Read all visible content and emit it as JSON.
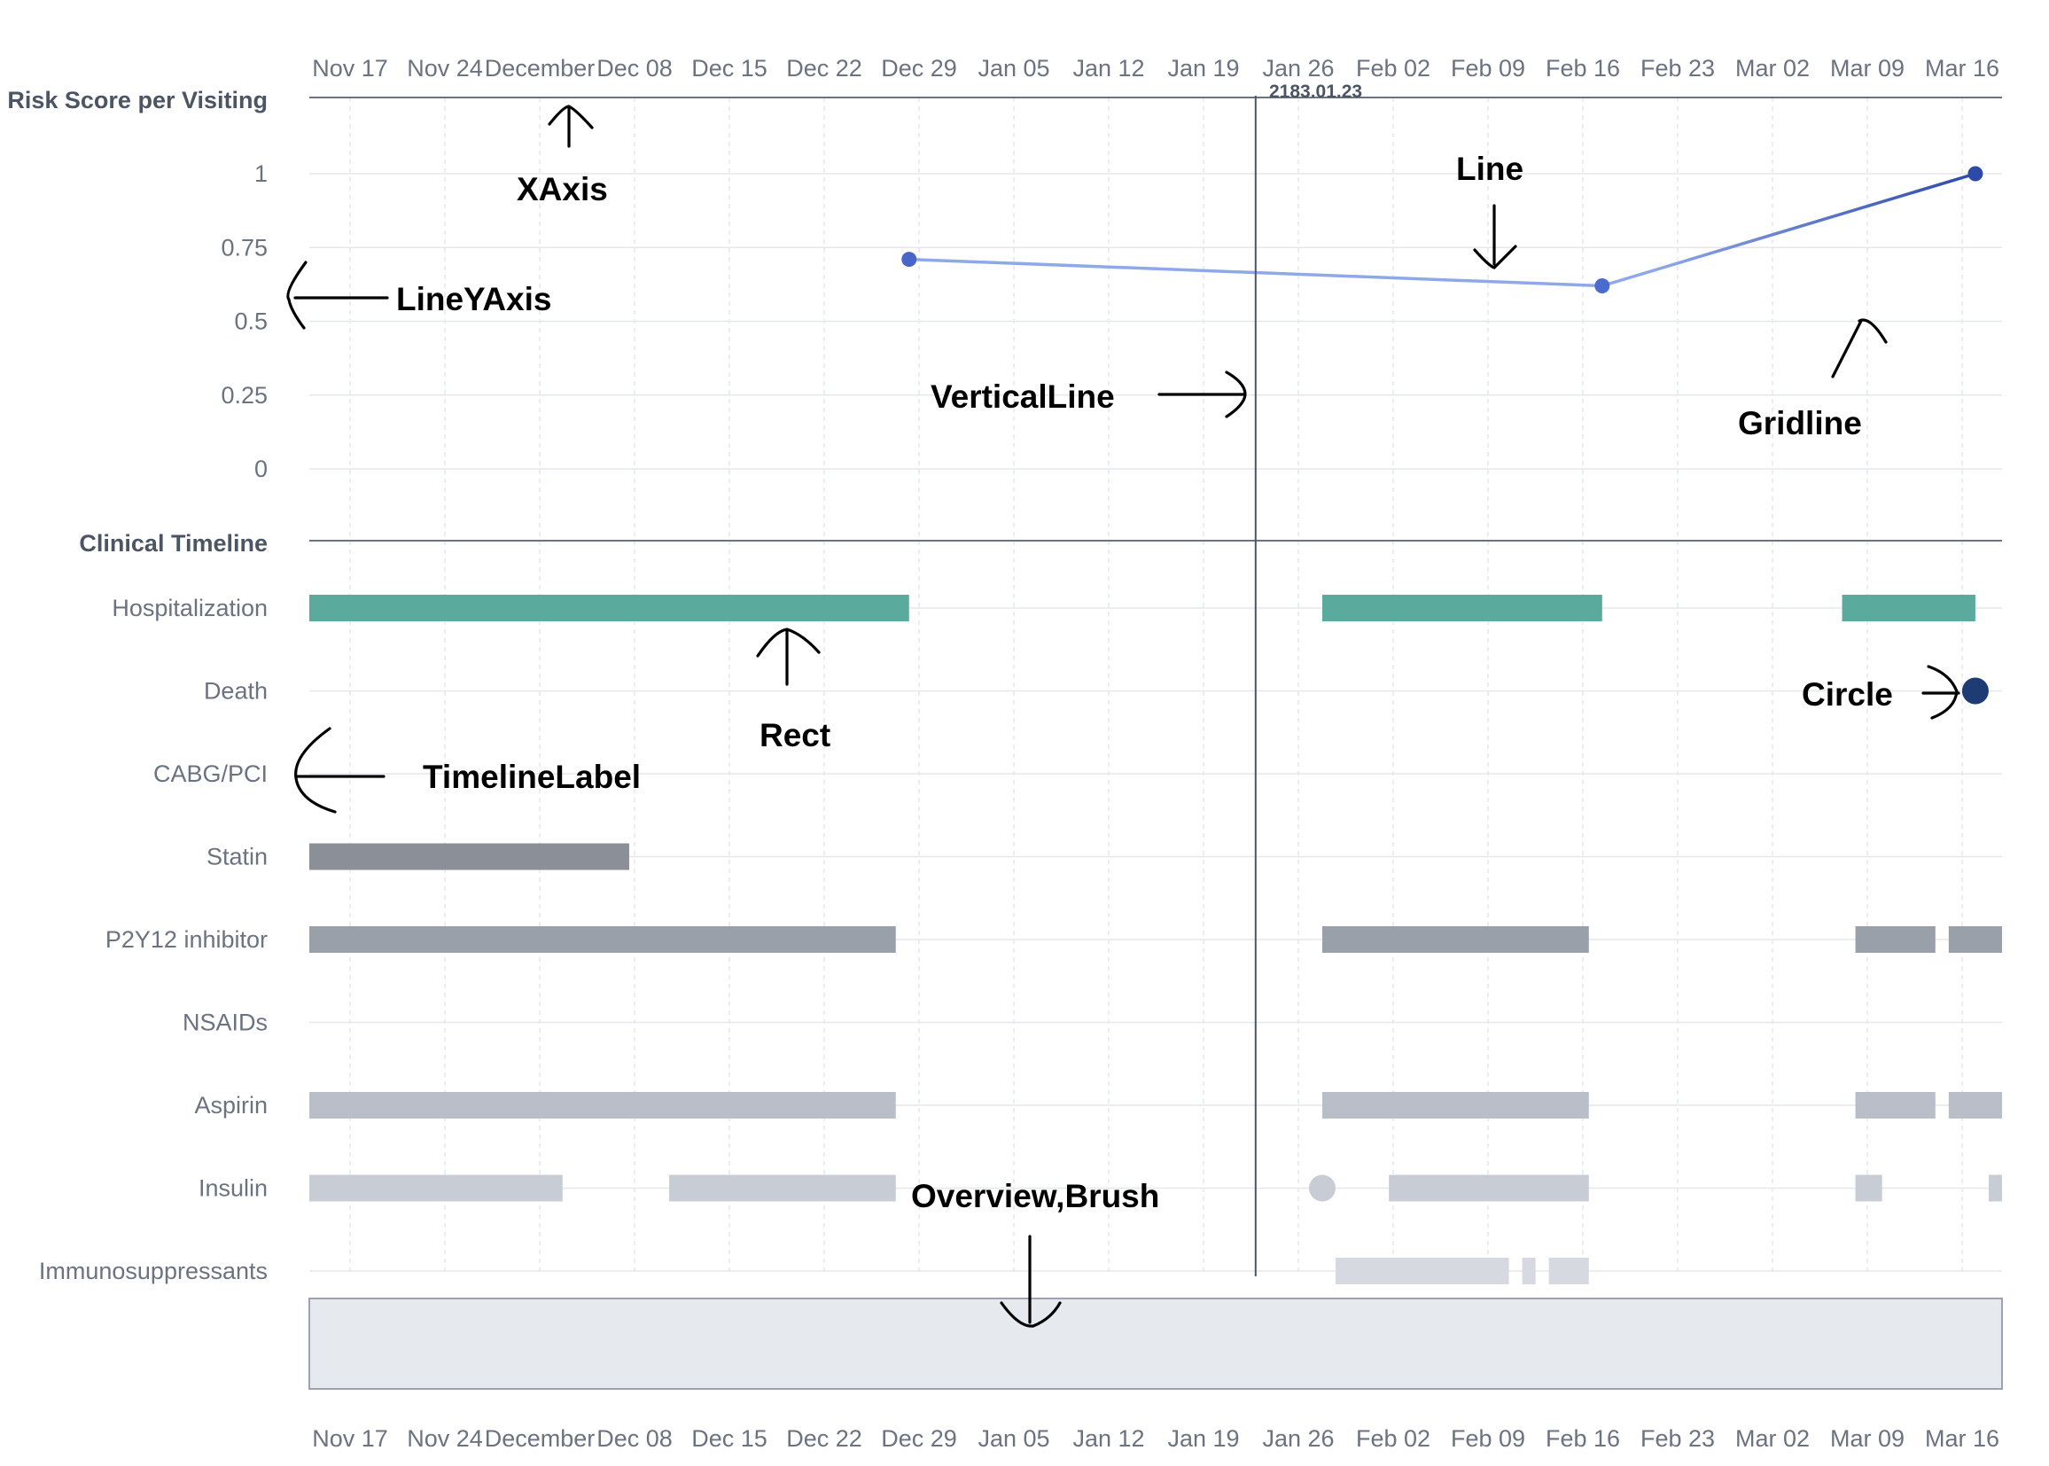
{
  "colors": {
    "grid": "#e5e7eb",
    "axis": "#6b7280",
    "line_start": "#8fa8e8",
    "line_end": "#2d4aa8",
    "hospitalization": "#5aab9d",
    "death": "#1f3b73",
    "statin": "#8a8f98",
    "p2y12": "#9aa0aa",
    "aspirin": "#b9bec8",
    "insulin": "#c8ccd4",
    "immuno": "#d6d9e0",
    "overview": "#e6e9ed"
  },
  "x_ticks": [
    "Nov 17",
    "Nov 24",
    "December",
    "Dec 08",
    "Dec 15",
    "Dec 22",
    "Dec 29",
    "Jan 05",
    "Jan 12",
    "Jan 19",
    "Jan 26",
    "Feb 02",
    "Feb 09",
    "Feb 16",
    "Feb 23",
    "Mar 02",
    "Mar 09",
    "Mar 16"
  ],
  "vertical_line_label": "2183.01.23",
  "chart_data": {
    "type": "line",
    "title": "Risk Score per Visiting",
    "y_ticks": [
      "1",
      "0.75",
      "0.5",
      "0.25",
      "0"
    ],
    "ylim": [
      0,
      1
    ],
    "points": [
      {
        "x": "2182-12-28",
        "y": 0.71
      },
      {
        "x": "2183-02-18",
        "y": 0.62
      },
      {
        "x": "2183-03-18",
        "y": 1.0
      }
    ],
    "vertical_line_x": "2183-01-23"
  },
  "timeline": {
    "title": "Clinical Timeline",
    "rows": [
      {
        "label": "Hospitalization",
        "color_key": "hospitalization",
        "bars": [
          [
            "2182-11-13",
            "2182-12-28"
          ],
          [
            "2183-01-28",
            "2183-02-18"
          ],
          [
            "2183-03-08",
            "2183-03-18"
          ]
        ]
      },
      {
        "label": "Death",
        "color_key": "death",
        "circles": [
          "2183-03-18"
        ]
      },
      {
        "label": "CABG/PCI",
        "color_key": "statin",
        "bars": []
      },
      {
        "label": "Statin",
        "color_key": "statin",
        "bars": [
          [
            "2182-11-13",
            "2182-12-07"
          ]
        ]
      },
      {
        "label": "P2Y12 inhibitor",
        "color_key": "p2y12",
        "bars": [
          [
            "2182-11-13",
            "2182-12-27"
          ],
          [
            "2183-01-28",
            "2183-02-17"
          ],
          [
            "2183-03-09",
            "2183-03-15"
          ],
          [
            "2183-03-16",
            "2183-03-20"
          ]
        ]
      },
      {
        "label": "NSAIDs",
        "color_key": "p2y12",
        "bars": []
      },
      {
        "label": "Aspirin",
        "color_key": "aspirin",
        "bars": [
          [
            "2182-11-13",
            "2182-12-27"
          ],
          [
            "2183-01-28",
            "2183-02-17"
          ],
          [
            "2183-03-09",
            "2183-03-15"
          ],
          [
            "2183-03-16",
            "2183-03-20"
          ]
        ]
      },
      {
        "label": "Insulin",
        "color_key": "insulin",
        "bars": [
          [
            "2182-11-13",
            "2182-12-02"
          ],
          [
            "2182-12-10",
            "2182-12-27"
          ],
          [
            "2183-02-02",
            "2183-02-17"
          ],
          [
            "2183-03-09",
            "2183-03-11"
          ],
          [
            "2183-03-19",
            "2183-03-20"
          ]
        ],
        "circles": [
          "2183-01-28"
        ]
      },
      {
        "label": "Immunosuppressants",
        "color_key": "immuno",
        "bars": [
          [
            "2183-01-29",
            "2183-02-11"
          ],
          [
            "2183-02-12",
            "2183-02-13"
          ],
          [
            "2183-02-14",
            "2183-02-17"
          ]
        ]
      }
    ]
  },
  "annotations": {
    "xaxis": "XAxis",
    "lineyaxis": "LineYAxis",
    "line": "Line",
    "verticalline": "VerticalLine",
    "gridline": "Gridline",
    "rect": "Rect",
    "circle": "Circle",
    "timelinelabel": "TimelineLabel",
    "overview_brush": "Overview,Brush"
  }
}
